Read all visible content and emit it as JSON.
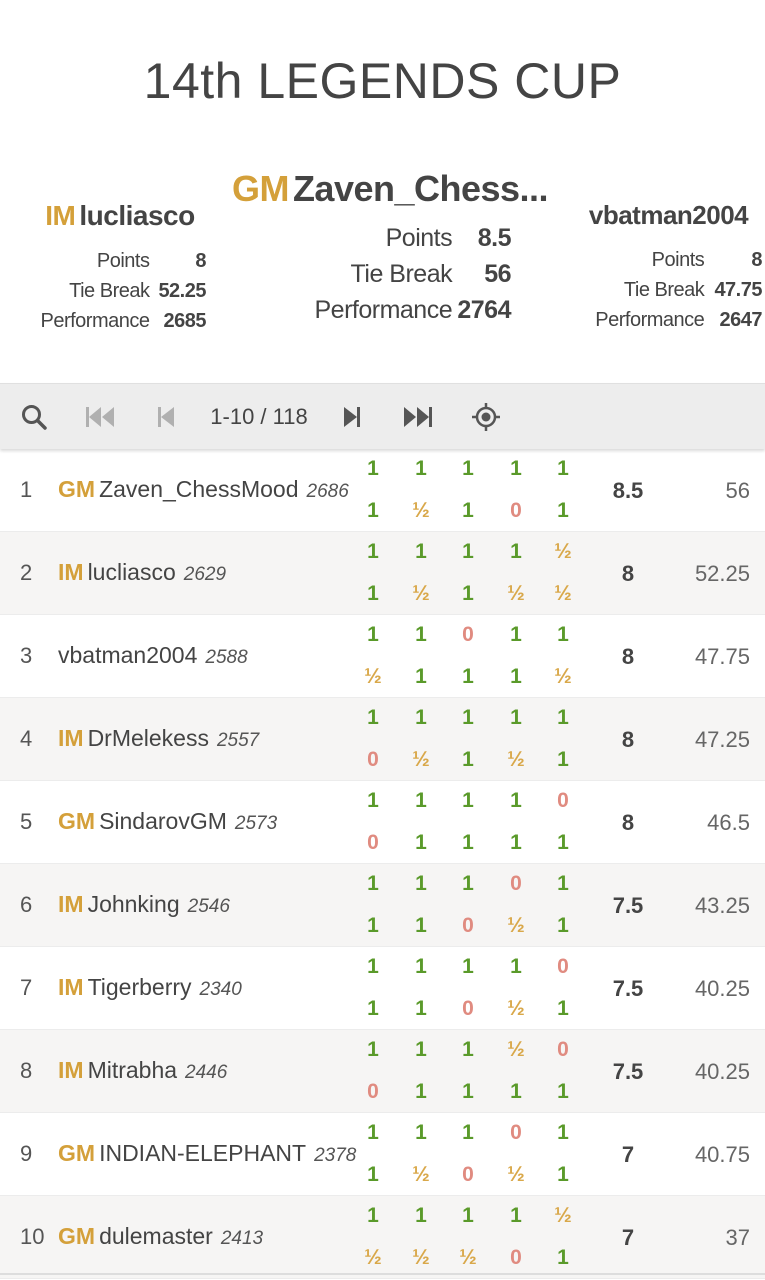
{
  "tournament": {
    "title": "14th LEGENDS CUP"
  },
  "podium": {
    "first": {
      "title": "GM",
      "name": "Zaven_Chess...",
      "points_label": "Points",
      "points": "8.5",
      "tiebreak_label": "Tie Break",
      "tiebreak": "56",
      "performance_label": "Performance",
      "performance": "2764"
    },
    "second": {
      "title": "IM",
      "name": "lucliasco",
      "points_label": "Points",
      "points": "8",
      "tiebreak_label": "Tie Break",
      "tiebreak": "52.25",
      "performance_label": "Performance",
      "performance": "2685"
    },
    "third": {
      "title": "",
      "name": "vbatman2004",
      "points_label": "Points",
      "points": "8",
      "tiebreak_label": "Tie Break",
      "tiebreak": "47.75",
      "performance_label": "Performance",
      "performance": "2647"
    }
  },
  "toolbar": {
    "page_info": "1-10 / 118",
    "icons": [
      "search-icon",
      "first-page-icon",
      "previous-page-icon",
      "next-page-icon",
      "last-page-icon",
      "locate-me-icon"
    ]
  },
  "colors": {
    "win": "#5a9a2a",
    "draw": "#d9a84a",
    "loss": "#e08b80",
    "title": "#d4a03a"
  },
  "standings": [
    {
      "rank": "1",
      "title": "GM",
      "name": "Zaven_ChessMood",
      "rating": "2686",
      "top": [
        "1",
        "1",
        "1",
        "1",
        "1"
      ],
      "bottom": [
        "1",
        "½",
        "1",
        "0",
        "1"
      ],
      "points": "8.5",
      "tiebreak": "56"
    },
    {
      "rank": "2",
      "title": "IM",
      "name": "lucliasco",
      "rating": "2629",
      "top": [
        "1",
        "1",
        "1",
        "1",
        "½"
      ],
      "bottom": [
        "1",
        "½",
        "1",
        "½",
        "½"
      ],
      "points": "8",
      "tiebreak": "52.25"
    },
    {
      "rank": "3",
      "title": "",
      "name": "vbatman2004",
      "rating": "2588",
      "top": [
        "1",
        "1",
        "0",
        "1",
        "1"
      ],
      "bottom": [
        "½",
        "1",
        "1",
        "1",
        "½"
      ],
      "points": "8",
      "tiebreak": "47.75"
    },
    {
      "rank": "4",
      "title": "IM",
      "name": "DrMelekess",
      "rating": "2557",
      "top": [
        "1",
        "1",
        "1",
        "1",
        "1"
      ],
      "bottom": [
        "0",
        "½",
        "1",
        "½",
        "1"
      ],
      "points": "8",
      "tiebreak": "47.25"
    },
    {
      "rank": "5",
      "title": "GM",
      "name": "SindarovGM",
      "rating": "2573",
      "top": [
        "1",
        "1",
        "1",
        "1",
        "0"
      ],
      "bottom": [
        "0",
        "1",
        "1",
        "1",
        "1"
      ],
      "points": "8",
      "tiebreak": "46.5"
    },
    {
      "rank": "6",
      "title": "IM",
      "name": "Johnking",
      "rating": "2546",
      "top": [
        "1",
        "1",
        "1",
        "0",
        "1"
      ],
      "bottom": [
        "1",
        "1",
        "0",
        "½",
        "1"
      ],
      "points": "7.5",
      "tiebreak": "43.25"
    },
    {
      "rank": "7",
      "title": "IM",
      "name": "Tigerberry",
      "rating": "2340",
      "top": [
        "1",
        "1",
        "1",
        "1",
        "0"
      ],
      "bottom": [
        "1",
        "1",
        "0",
        "½",
        "1"
      ],
      "points": "7.5",
      "tiebreak": "40.25"
    },
    {
      "rank": "8",
      "title": "IM",
      "name": "Mitrabha",
      "rating": "2446",
      "top": [
        "1",
        "1",
        "1",
        "½",
        "0"
      ],
      "bottom": [
        "0",
        "1",
        "1",
        "1",
        "1"
      ],
      "points": "7.5",
      "tiebreak": "40.25"
    },
    {
      "rank": "9",
      "title": "GM",
      "name": "INDIAN-ELEPHANT",
      "rating": "2378",
      "top": [
        "1",
        "1",
        "1",
        "0",
        "1"
      ],
      "bottom": [
        "1",
        "½",
        "0",
        "½",
        "1"
      ],
      "points": "7",
      "tiebreak": "40.75"
    },
    {
      "rank": "10",
      "title": "GM",
      "name": "dulemaster",
      "rating": "2413",
      "top": [
        "1",
        "1",
        "1",
        "1",
        "½"
      ],
      "bottom": [
        "½",
        "½",
        "½",
        "0",
        "1"
      ],
      "points": "7",
      "tiebreak": "37"
    }
  ]
}
